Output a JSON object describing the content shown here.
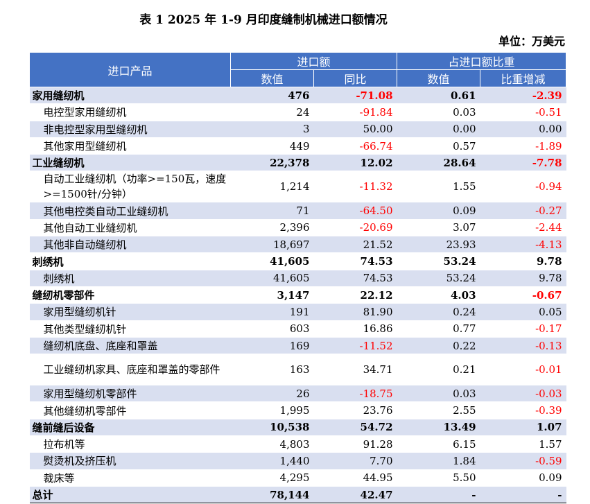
{
  "title": "表 1  2025 年 1-9 月印度缝制机械进口额情况",
  "unit": "单位：万美元",
  "header": {
    "product": "进口产品",
    "import_amount": "进口额",
    "share": "占进口额比重",
    "value": "数值",
    "yoy": "同比",
    "share_value": "数值",
    "share_change": "比重增减"
  },
  "rows": [
    {
      "type": "cat",
      "shade": true,
      "name": "家用缝纫机",
      "value": "476",
      "yoy": "-71.08",
      "share": "0.61",
      "change": "-2.39"
    },
    {
      "type": "sub",
      "shade": false,
      "name": "电控型家用缝纫机",
      "value": "24",
      "yoy": "-91.84",
      "share": "0.03",
      "change": "-0.51"
    },
    {
      "type": "sub",
      "shade": true,
      "name": "非电控型家用型缝纫机",
      "value": "3",
      "yoy": "50.00",
      "share": "0.00",
      "change": "0.00"
    },
    {
      "type": "sub",
      "shade": false,
      "name": "其他家用型缝纫机",
      "value": "449",
      "yoy": "-66.74",
      "share": "0.57",
      "change": "-1.89"
    },
    {
      "type": "cat",
      "shade": true,
      "name": "工业缝纫机",
      "value": "22,378",
      "yoy": "12.02",
      "share": "28.64",
      "change": "-7.78"
    },
    {
      "type": "sub",
      "shade": false,
      "tall": true,
      "name": "自动工业缝纫机（功率>=150瓦，速度>=1500针/分钟）",
      "value": "1,214",
      "yoy": "-11.32",
      "share": "1.55",
      "change": "-0.94"
    },
    {
      "type": "sub",
      "shade": true,
      "name": "其他电控类自动工业缝纫机",
      "value": "71",
      "yoy": "-64.50",
      "share": "0.09",
      "change": "-0.27"
    },
    {
      "type": "sub",
      "shade": false,
      "name": "其他自动工业缝纫机",
      "value": "2,396",
      "yoy": "-20.69",
      "share": "3.07",
      "change": "-2.44"
    },
    {
      "type": "sub",
      "shade": true,
      "name": "其他非自动缝纫机",
      "value": "18,697",
      "yoy": "21.52",
      "share": "23.93",
      "change": "-4.13"
    },
    {
      "type": "cat",
      "shade": false,
      "name": "刺绣机",
      "value": "41,605",
      "yoy": "74.53",
      "share": "53.24",
      "change": "9.78"
    },
    {
      "type": "sub",
      "shade": true,
      "name": "刺绣机",
      "value": "41,605",
      "yoy": "74.53",
      "share": "53.24",
      "change": "9.78"
    },
    {
      "type": "cat",
      "shade": false,
      "name": "缝纫机零部件",
      "value": "3,147",
      "yoy": "22.12",
      "share": "4.03",
      "change": "-0.67"
    },
    {
      "type": "sub",
      "shade": true,
      "name": "家用型缝纫机针",
      "value": "191",
      "yoy": "81.90",
      "share": "0.24",
      "change": "0.05"
    },
    {
      "type": "sub",
      "shade": false,
      "name": "其他类型缝纫机针",
      "value": "603",
      "yoy": "16.86",
      "share": "0.77",
      "change": "-0.17"
    },
    {
      "type": "sub",
      "shade": true,
      "name": "缝纫机底盘、底座和罩盖",
      "value": "169",
      "yoy": "-11.52",
      "share": "0.22",
      "change": "-0.13"
    },
    {
      "type": "sub",
      "shade": false,
      "tall": true,
      "name": "工业缝纫机家具、底座和罩盖的零部件",
      "value": "163",
      "yoy": "34.71",
      "share": "0.21",
      "change": "-0.01"
    },
    {
      "type": "sub",
      "shade": true,
      "name": "家用型缝纫机零部件",
      "value": "26",
      "yoy": "-18.75",
      "share": "0.03",
      "change": "-0.03"
    },
    {
      "type": "sub",
      "shade": false,
      "name": "其他缝纫机零部件",
      "value": "1,995",
      "yoy": "23.76",
      "share": "2.55",
      "change": "-0.39"
    },
    {
      "type": "cat",
      "shade": true,
      "name": "缝前缝后设备",
      "value": "10,538",
      "yoy": "54.72",
      "share": "13.49",
      "change": "1.07"
    },
    {
      "type": "sub",
      "shade": false,
      "name": "拉布机等",
      "value": "4,803",
      "yoy": "91.28",
      "share": "6.15",
      "change": "1.57"
    },
    {
      "type": "sub",
      "shade": true,
      "name": "熨烫机及挤压机",
      "value": "1,440",
      "yoy": "7.70",
      "share": "1.84",
      "change": "-0.59"
    },
    {
      "type": "sub",
      "shade": false,
      "name": "裁床等",
      "value": "4,295",
      "yoy": "44.95",
      "share": "5.50",
      "change": "0.09"
    },
    {
      "type": "cat",
      "shade": true,
      "name": "总计",
      "value": "78,144",
      "yoy": "42.47",
      "share": "-",
      "change": "-"
    }
  ]
}
